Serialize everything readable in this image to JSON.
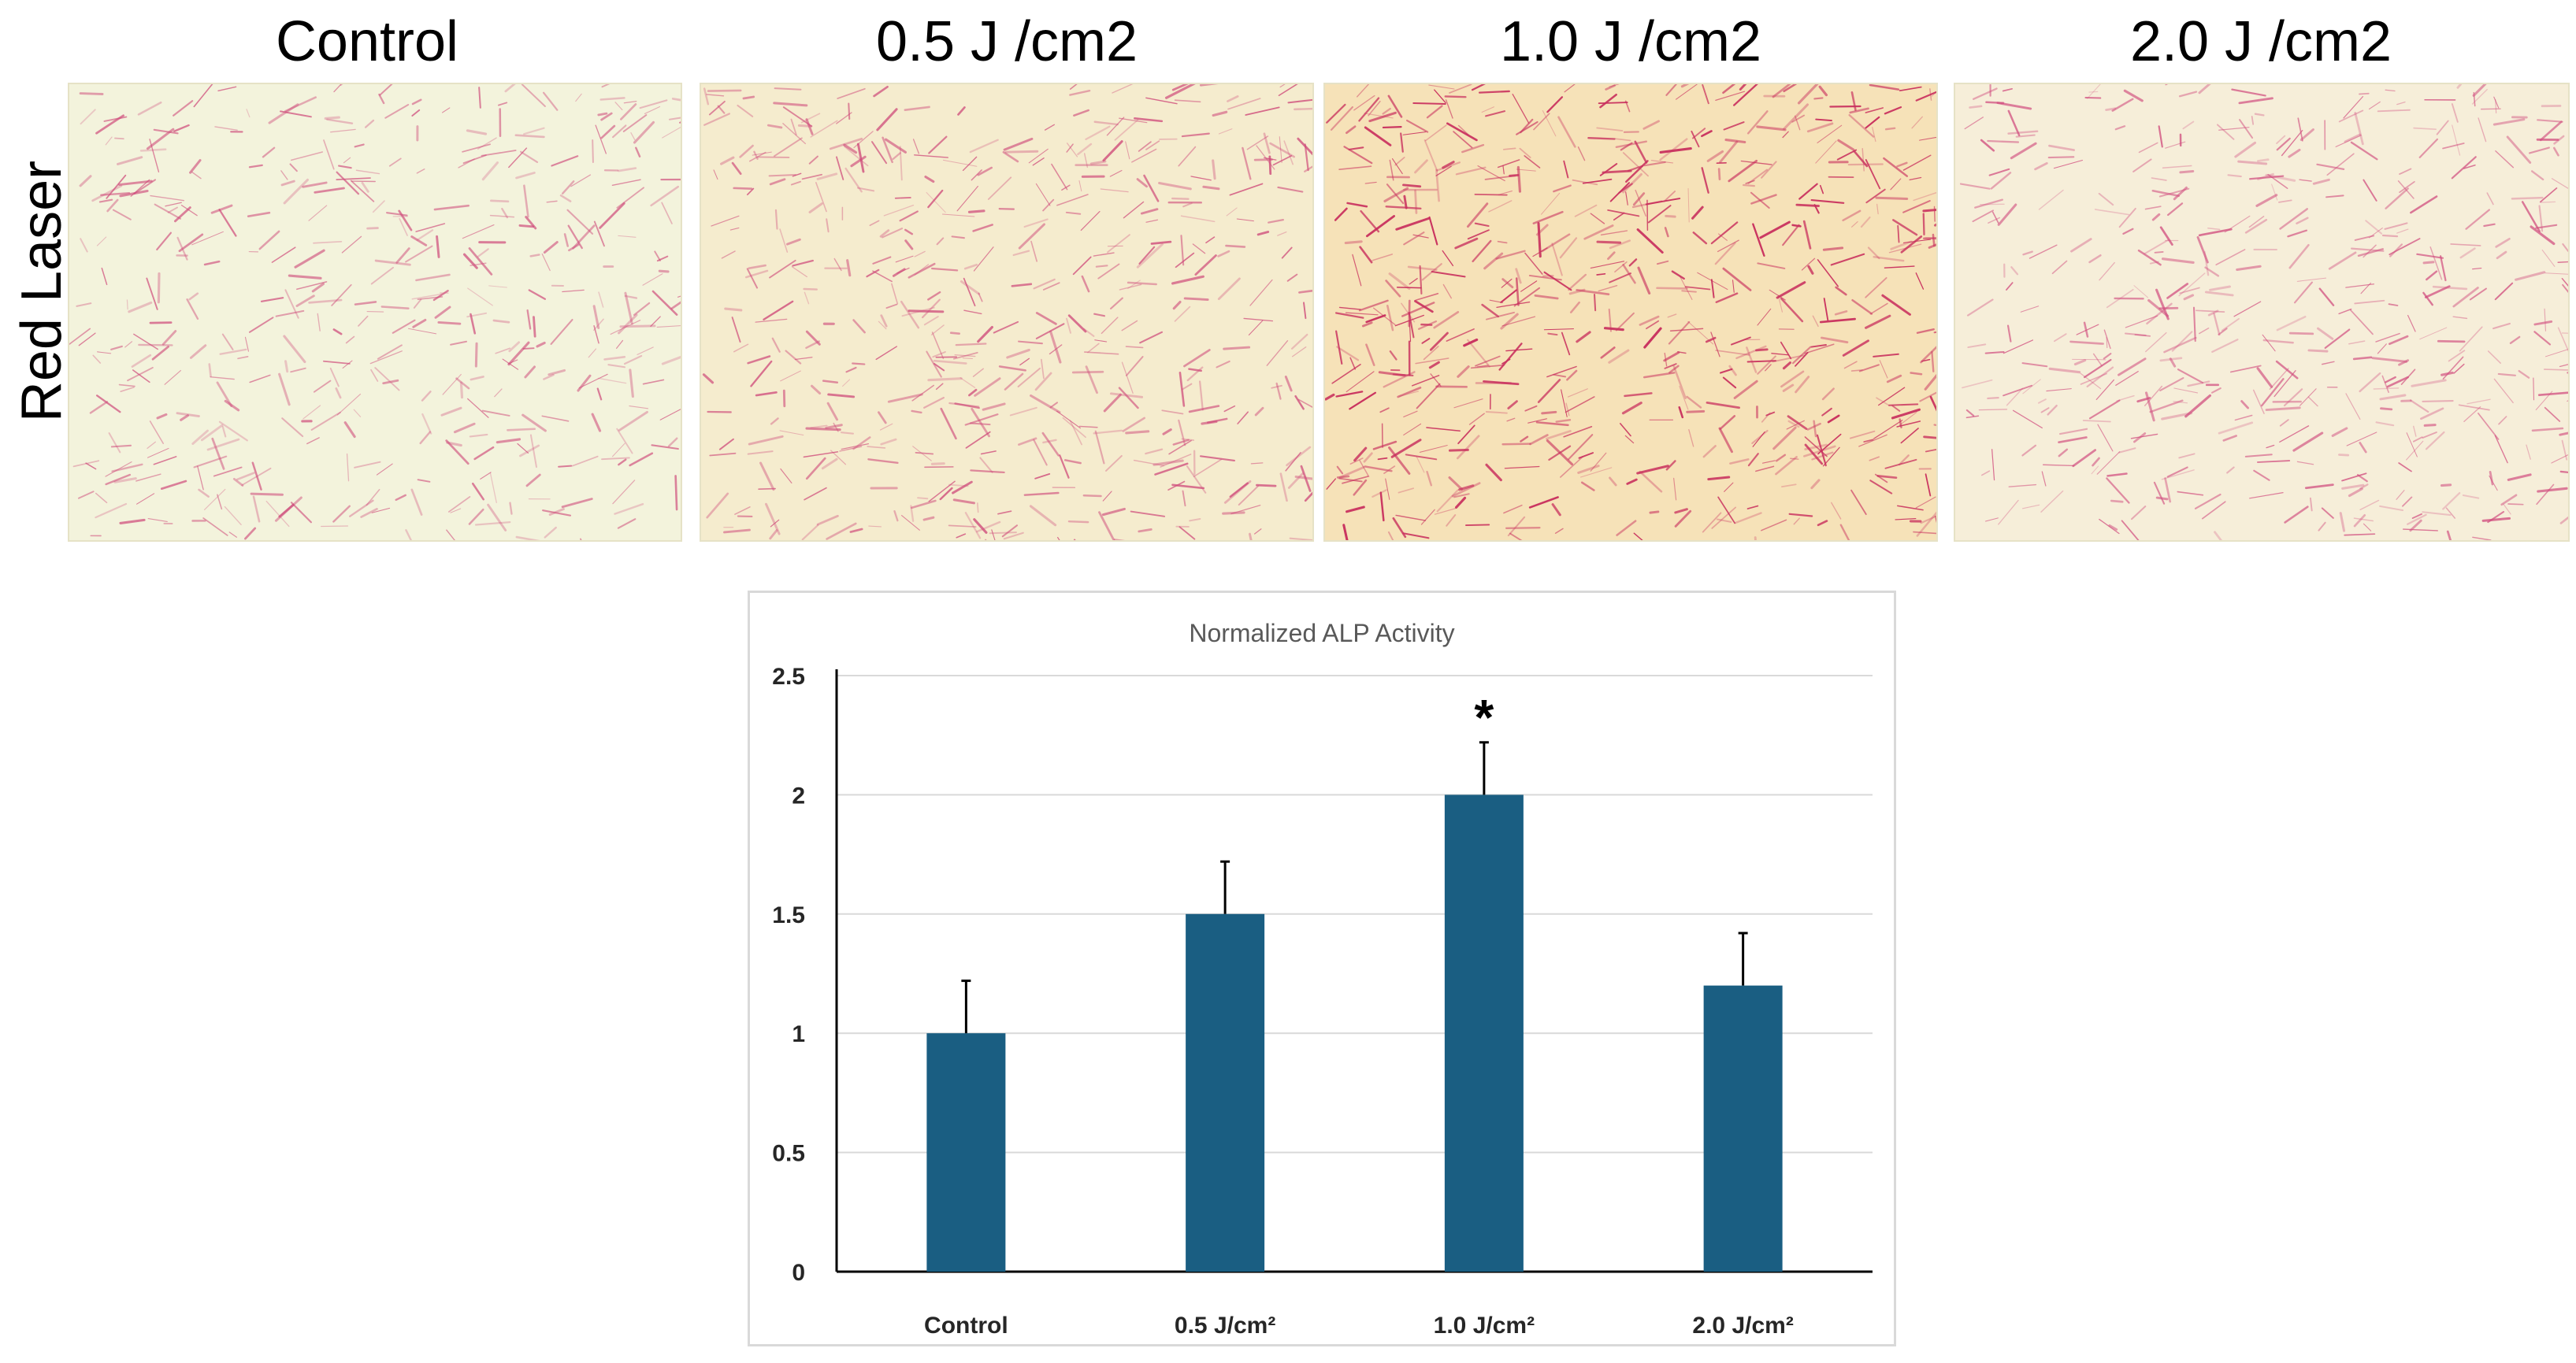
{
  "figure": {
    "panel_titles": [
      "Control",
      "0.5 J /cm2",
      "1.0 J /cm2",
      "2.0 J /cm2"
    ],
    "row_label": "Red Laser",
    "micrographs": [
      {
        "label": "Control",
        "background": "#f3f3dc",
        "stain": "#cf4a7a",
        "density": 0.45
      },
      {
        "label": "0.5 J /cm2",
        "background": "#f5ecce",
        "stain": "#cf4a7a",
        "density": 0.6
      },
      {
        "label": "1.0 J /cm2",
        "background": "#f6e2b8",
        "stain": "#c9305e",
        "density": 0.95
      },
      {
        "label": "2.0 J /cm2",
        "background": "#f6eed9",
        "stain": "#d14c7e",
        "density": 0.55
      }
    ]
  },
  "chart_data": {
    "type": "bar",
    "title": "Normalized ALP Activity",
    "categories": [
      "Control",
      "0.5 J/cm²",
      "1.0 J/cm²",
      "2.0 J/cm²"
    ],
    "values": [
      1.0,
      1.5,
      2.0,
      1.2
    ],
    "error": [
      0.22,
      0.22,
      0.22,
      0.22
    ],
    "significance": [
      "",
      "",
      "*",
      ""
    ],
    "ylim": [
      0,
      2.5
    ],
    "yticks": [
      "0",
      "0.5",
      "1",
      "1.5",
      "2",
      "2.5"
    ],
    "ytick_values": [
      0,
      0.5,
      1,
      1.5,
      2,
      2.5
    ],
    "xlabel": "",
    "ylabel": "",
    "grid": true,
    "bar_color": "#1a5e82"
  }
}
